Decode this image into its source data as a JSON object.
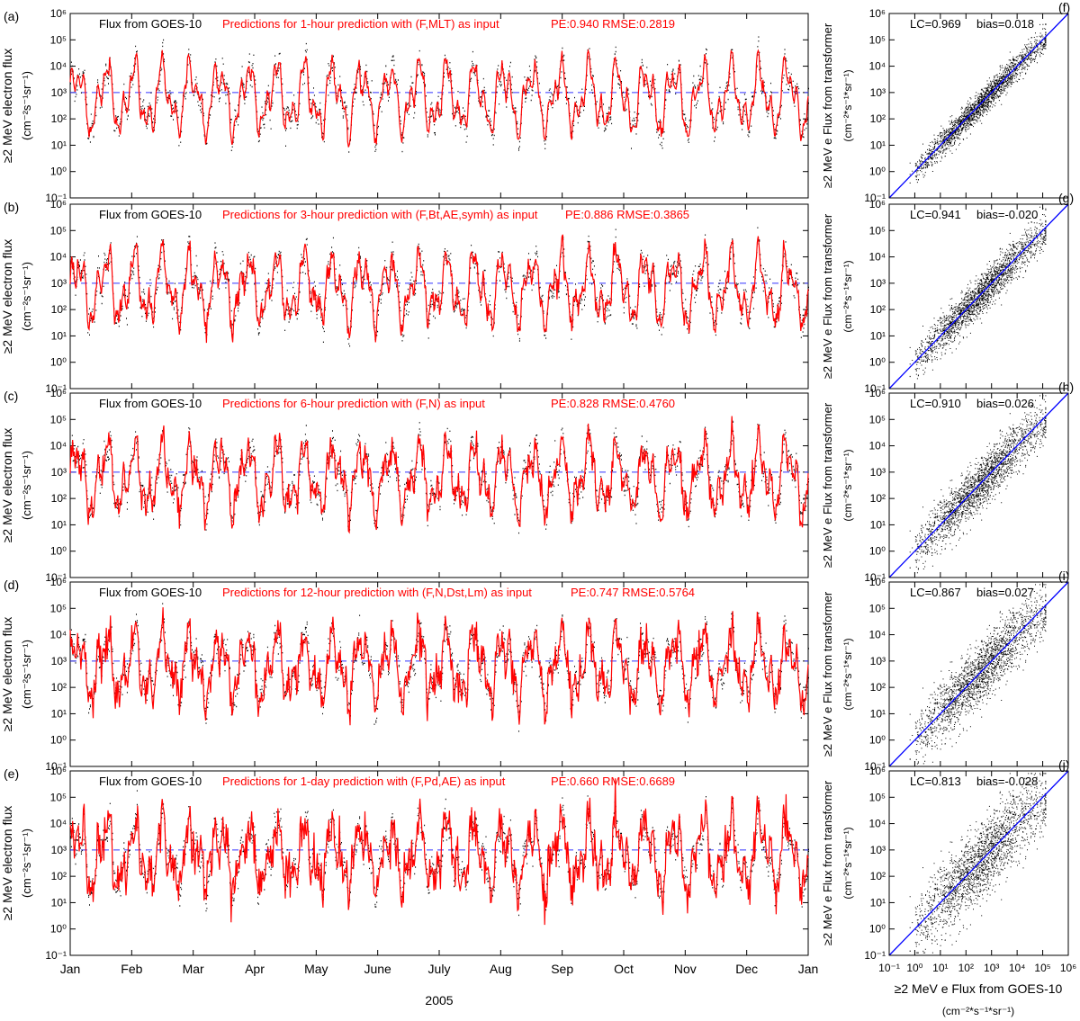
{
  "figure": {
    "xlabel": "2005",
    "ylabel_left": "≥2 MeV electron flux",
    "unit_label": "(cm⁻²s⁻¹sr⁻¹)",
    "scatter_ylabel": "≥2 MeV e Flux from transformer",
    "scatter_xlabel": "≥2 MeV e Flux from GOES-10",
    "scatter_xunit": "(cm⁻²*s⁻¹*sr⁻¹)",
    "scatter_yunit": "(cm⁻²*s⁻¹*sr⁻¹)",
    "observed_legend": "Flux from GOES-10",
    "colors": {
      "observed": "#000000",
      "predicted": "#ff0000",
      "threshold": "#3333ff",
      "diagonal": "#0000ff"
    }
  },
  "chart_data": [
    {
      "type": "scatter",
      "panel": "(a)",
      "title": "Predictions for 1-hour prediction with (F,MLT) as input",
      "metrics": "PE:0.940 RMSE:0.2819",
      "x_ticks": [
        "Jan",
        "Feb",
        "Mar",
        "Apr",
        "May",
        "June",
        "July",
        "Aug",
        "Sep",
        "Oct",
        "Nov",
        "Dec",
        "Jan"
      ],
      "y_ticks": [
        "10⁻¹",
        "10⁰",
        "10¹",
        "10²",
        "10³",
        "10⁴",
        "10⁵",
        "10⁶"
      ],
      "ylim_log10": [
        -1,
        6
      ],
      "threshold_log10": 3,
      "noise": 0.12
    },
    {
      "type": "scatter",
      "panel": "(b)",
      "title": "Predictions for 3-hour prediction with (F,Bt,AE,symh) as input",
      "metrics": "PE:0.886 RMSE:0.3865",
      "x_ticks": [
        "Jan",
        "Feb",
        "Mar",
        "Apr",
        "May",
        "June",
        "July",
        "Aug",
        "Sep",
        "Oct",
        "Nov",
        "Dec",
        "Jan"
      ],
      "y_ticks": [
        "10⁻¹",
        "10⁰",
        "10¹",
        "10²",
        "10³",
        "10⁴",
        "10⁵",
        "10⁶"
      ],
      "ylim_log10": [
        -1,
        6
      ],
      "threshold_log10": 3,
      "noise": 0.2
    },
    {
      "type": "scatter",
      "panel": "(c)",
      "title": "Predictions for 6-hour prediction with (F,N) as input",
      "metrics": "PE:0.828 RMSE:0.4760",
      "x_ticks": [
        "Jan",
        "Feb",
        "Mar",
        "Apr",
        "May",
        "June",
        "July",
        "Aug",
        "Sep",
        "Oct",
        "Nov",
        "Dec",
        "Jan"
      ],
      "y_ticks": [
        "10⁻¹",
        "10⁰",
        "10¹",
        "10²",
        "10³",
        "10⁴",
        "10⁵",
        "10⁶"
      ],
      "ylim_log10": [
        -1,
        6
      ],
      "threshold_log10": 3,
      "noise": 0.28
    },
    {
      "type": "scatter",
      "panel": "(d)",
      "title": "Predictions for 12-hour prediction with (F,N,Dst,Lm) as input",
      "metrics": "PE:0.747 RMSE:0.5764",
      "x_ticks": [
        "Jan",
        "Feb",
        "Mar",
        "Apr",
        "May",
        "June",
        "July",
        "Aug",
        "Sep",
        "Oct",
        "Nov",
        "Dec",
        "Jan"
      ],
      "y_ticks": [
        "10⁻¹",
        "10⁰",
        "10¹",
        "10²",
        "10³",
        "10⁴",
        "10⁵",
        "10⁶"
      ],
      "ylim_log10": [
        -1,
        6
      ],
      "threshold_log10": 3,
      "noise": 0.36
    },
    {
      "type": "scatter",
      "panel": "(e)",
      "title": "Predictions for 1-day prediction with (F,Pd,AE) as input",
      "metrics": "PE:0.660 RMSE:0.6689",
      "x_ticks": [
        "Jan",
        "Feb",
        "Mar",
        "Apr",
        "May",
        "June",
        "July",
        "Aug",
        "Sep",
        "Oct",
        "Nov",
        "Dec",
        "Jan"
      ],
      "y_ticks": [
        "10⁻¹",
        "10⁰",
        "10¹",
        "10²",
        "10³",
        "10⁴",
        "10⁵",
        "10⁶"
      ],
      "ylim_log10": [
        -1,
        6
      ],
      "threshold_log10": 3,
      "noise": 0.45
    },
    {
      "type": "scatter",
      "panel": "(f)",
      "lc": "LC=0.969",
      "bias": "bias=0.018",
      "xlim_log10": [
        -1,
        6
      ],
      "ylim_log10": [
        -1,
        6
      ],
      "spread": 0.25
    },
    {
      "type": "scatter",
      "panel": "(g)",
      "lc": "LC=0.941",
      "bias": "bias=-0.020",
      "xlim_log10": [
        -1,
        6
      ],
      "ylim_log10": [
        -1,
        6
      ],
      "spread": 0.36
    },
    {
      "type": "scatter",
      "panel": "(h)",
      "lc": "LC=0.910",
      "bias": "bias=0.026",
      "xlim_log10": [
        -1,
        6
      ],
      "ylim_log10": [
        -1,
        6
      ],
      "spread": 0.46
    },
    {
      "type": "scatter",
      "panel": "(i)",
      "lc": "LC=0.867",
      "bias": "bias=0.027",
      "xlim_log10": [
        -1,
        6
      ],
      "ylim_log10": [
        -1,
        6
      ],
      "spread": 0.56
    },
    {
      "type": "scatter",
      "panel": "(j)",
      "lc": "LC=0.813",
      "bias": "bias=-0.028",
      "xlim_log10": [
        -1,
        6
      ],
      "ylim_log10": [
        -1,
        6
      ],
      "spread": 0.68
    }
  ]
}
